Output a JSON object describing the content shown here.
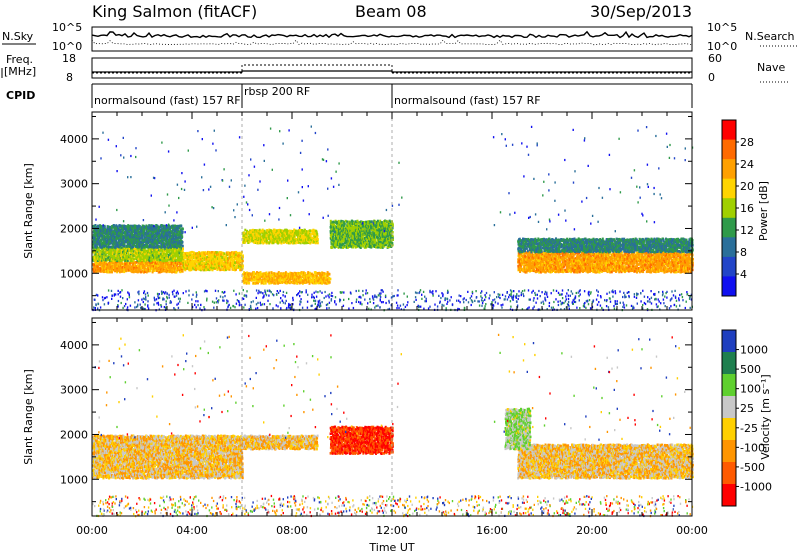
{
  "header": {
    "station": "King Salmon (fitACF)",
    "beam": "Beam 08",
    "date": "30/Sep/2013"
  },
  "panels": {
    "nsky_label": "N.Sky",
    "nsearch_label": "N.Search",
    "freq_label_line1": "Freq.",
    "freq_label_line2": "[MHz]",
    "nave_label": "Nave",
    "cpid_label": "CPID",
    "count_ticks": [
      "10^5",
      "10^0"
    ],
    "freq_ticks": [
      "18",
      "8"
    ],
    "nave_ticks": [
      "60",
      "0"
    ]
  },
  "cpid_segments": [
    {
      "label": "normalsound (fast) 157 RF",
      "start_hour": 0
    },
    {
      "label": "rbsp 200 RF",
      "start_hour": 6
    },
    {
      "label": "normalsound (fast) 157 RF",
      "start_hour": 12
    }
  ],
  "power_panel": {
    "ylabel": "Slant Range [km]",
    "cbar_label": "Power [dB]",
    "cbar_ticks": [
      "28",
      "24",
      "20",
      "16",
      "12",
      "8",
      "4"
    ],
    "cbar_colors": [
      "#ff0000",
      "#ff6a00",
      "#ffa000",
      "#ffd400",
      "#a0d000",
      "#2f9a4a",
      "#2a6f9a",
      "#2245c8",
      "#1010f0"
    ]
  },
  "velocity_panel": {
    "ylabel": "Slant Range [km]",
    "cbar_label": "Velocity [m s⁻¹]",
    "cbar_ticks": [
      "1000",
      "500",
      "100",
      "25",
      "-25",
      "-100",
      "-500",
      "-1000"
    ],
    "cbar_colors": [
      "#1f3fbf",
      "#1f7f4f",
      "#5fd02f",
      "#c8c8c8",
      "#ffd000",
      "#ff9500",
      "#ff5a00",
      "#ff0000"
    ]
  },
  "chart_data": [
    {
      "type": "heatmap",
      "title": "King Salmon (fitACF)",
      "ylabel": "Slant Range [km]",
      "xlabel": "Time UT",
      "x_ticks": [
        "00:00",
        "04:00",
        "08:00",
        "12:00",
        "16:00",
        "20:00",
        "00:00"
      ],
      "y_ticks": [
        1000,
        2000,
        3000,
        4000
      ],
      "xlim": [
        0,
        24
      ],
      "ylim": [
        180,
        4600
      ],
      "value": "Power [dB]",
      "bands": [
        {
          "x": [
            0,
            3.6
          ],
          "y": [
            1050,
            1300
          ],
          "value": 24
        },
        {
          "x": [
            0,
            3.6
          ],
          "y": [
            1300,
            1600
          ],
          "value": 16
        },
        {
          "x": [
            0,
            3.6
          ],
          "y": [
            1600,
            2100
          ],
          "value": 10
        },
        {
          "x": [
            3.6,
            6
          ],
          "y": [
            1100,
            1500
          ],
          "value": 20
        },
        {
          "x": [
            6,
            9
          ],
          "y": [
            1700,
            2000
          ],
          "value": 18
        },
        {
          "x": [
            6,
            9.5
          ],
          "y": [
            800,
            1050
          ],
          "value": 22
        },
        {
          "x": [
            9.5,
            12
          ],
          "y": [
            1600,
            2200
          ],
          "value": 14
        },
        {
          "x": [
            17,
            24
          ],
          "y": [
            1050,
            1500
          ],
          "value": 24
        },
        {
          "x": [
            17,
            24
          ],
          "y": [
            1500,
            1800
          ],
          "value": 10
        }
      ]
    },
    {
      "type": "heatmap",
      "title": "",
      "ylabel": "Slant Range [km]",
      "xlabel": "Time UT",
      "x_ticks": [
        "00:00",
        "04:00",
        "08:00",
        "12:00",
        "16:00",
        "20:00",
        "00:00"
      ],
      "y_ticks": [
        1000,
        2000,
        3000,
        4000
      ],
      "xlim": [
        0,
        24
      ],
      "ylim": [
        180,
        4600
      ],
      "value": "Velocity [m s⁻¹]",
      "bands": [
        {
          "x": [
            0,
            6
          ],
          "y": [
            1050,
            2000
          ],
          "value": 0
        },
        {
          "x": [
            6,
            9
          ],
          "y": [
            1700,
            2000
          ],
          "value": 0
        },
        {
          "x": [
            9.5,
            12
          ],
          "y": [
            1600,
            2200
          ],
          "value": -500
        },
        {
          "x": [
            17,
            24
          ],
          "y": [
            1050,
            1800
          ],
          "value": 0
        },
        {
          "x": [
            16.5,
            17.5
          ],
          "y": [
            1700,
            2600
          ],
          "value": 100
        }
      ]
    }
  ],
  "xaxis": {
    "label": "Time UT",
    "ticks": [
      "00:00",
      "04:00",
      "08:00",
      "12:00",
      "16:00",
      "20:00",
      "00:00"
    ]
  }
}
